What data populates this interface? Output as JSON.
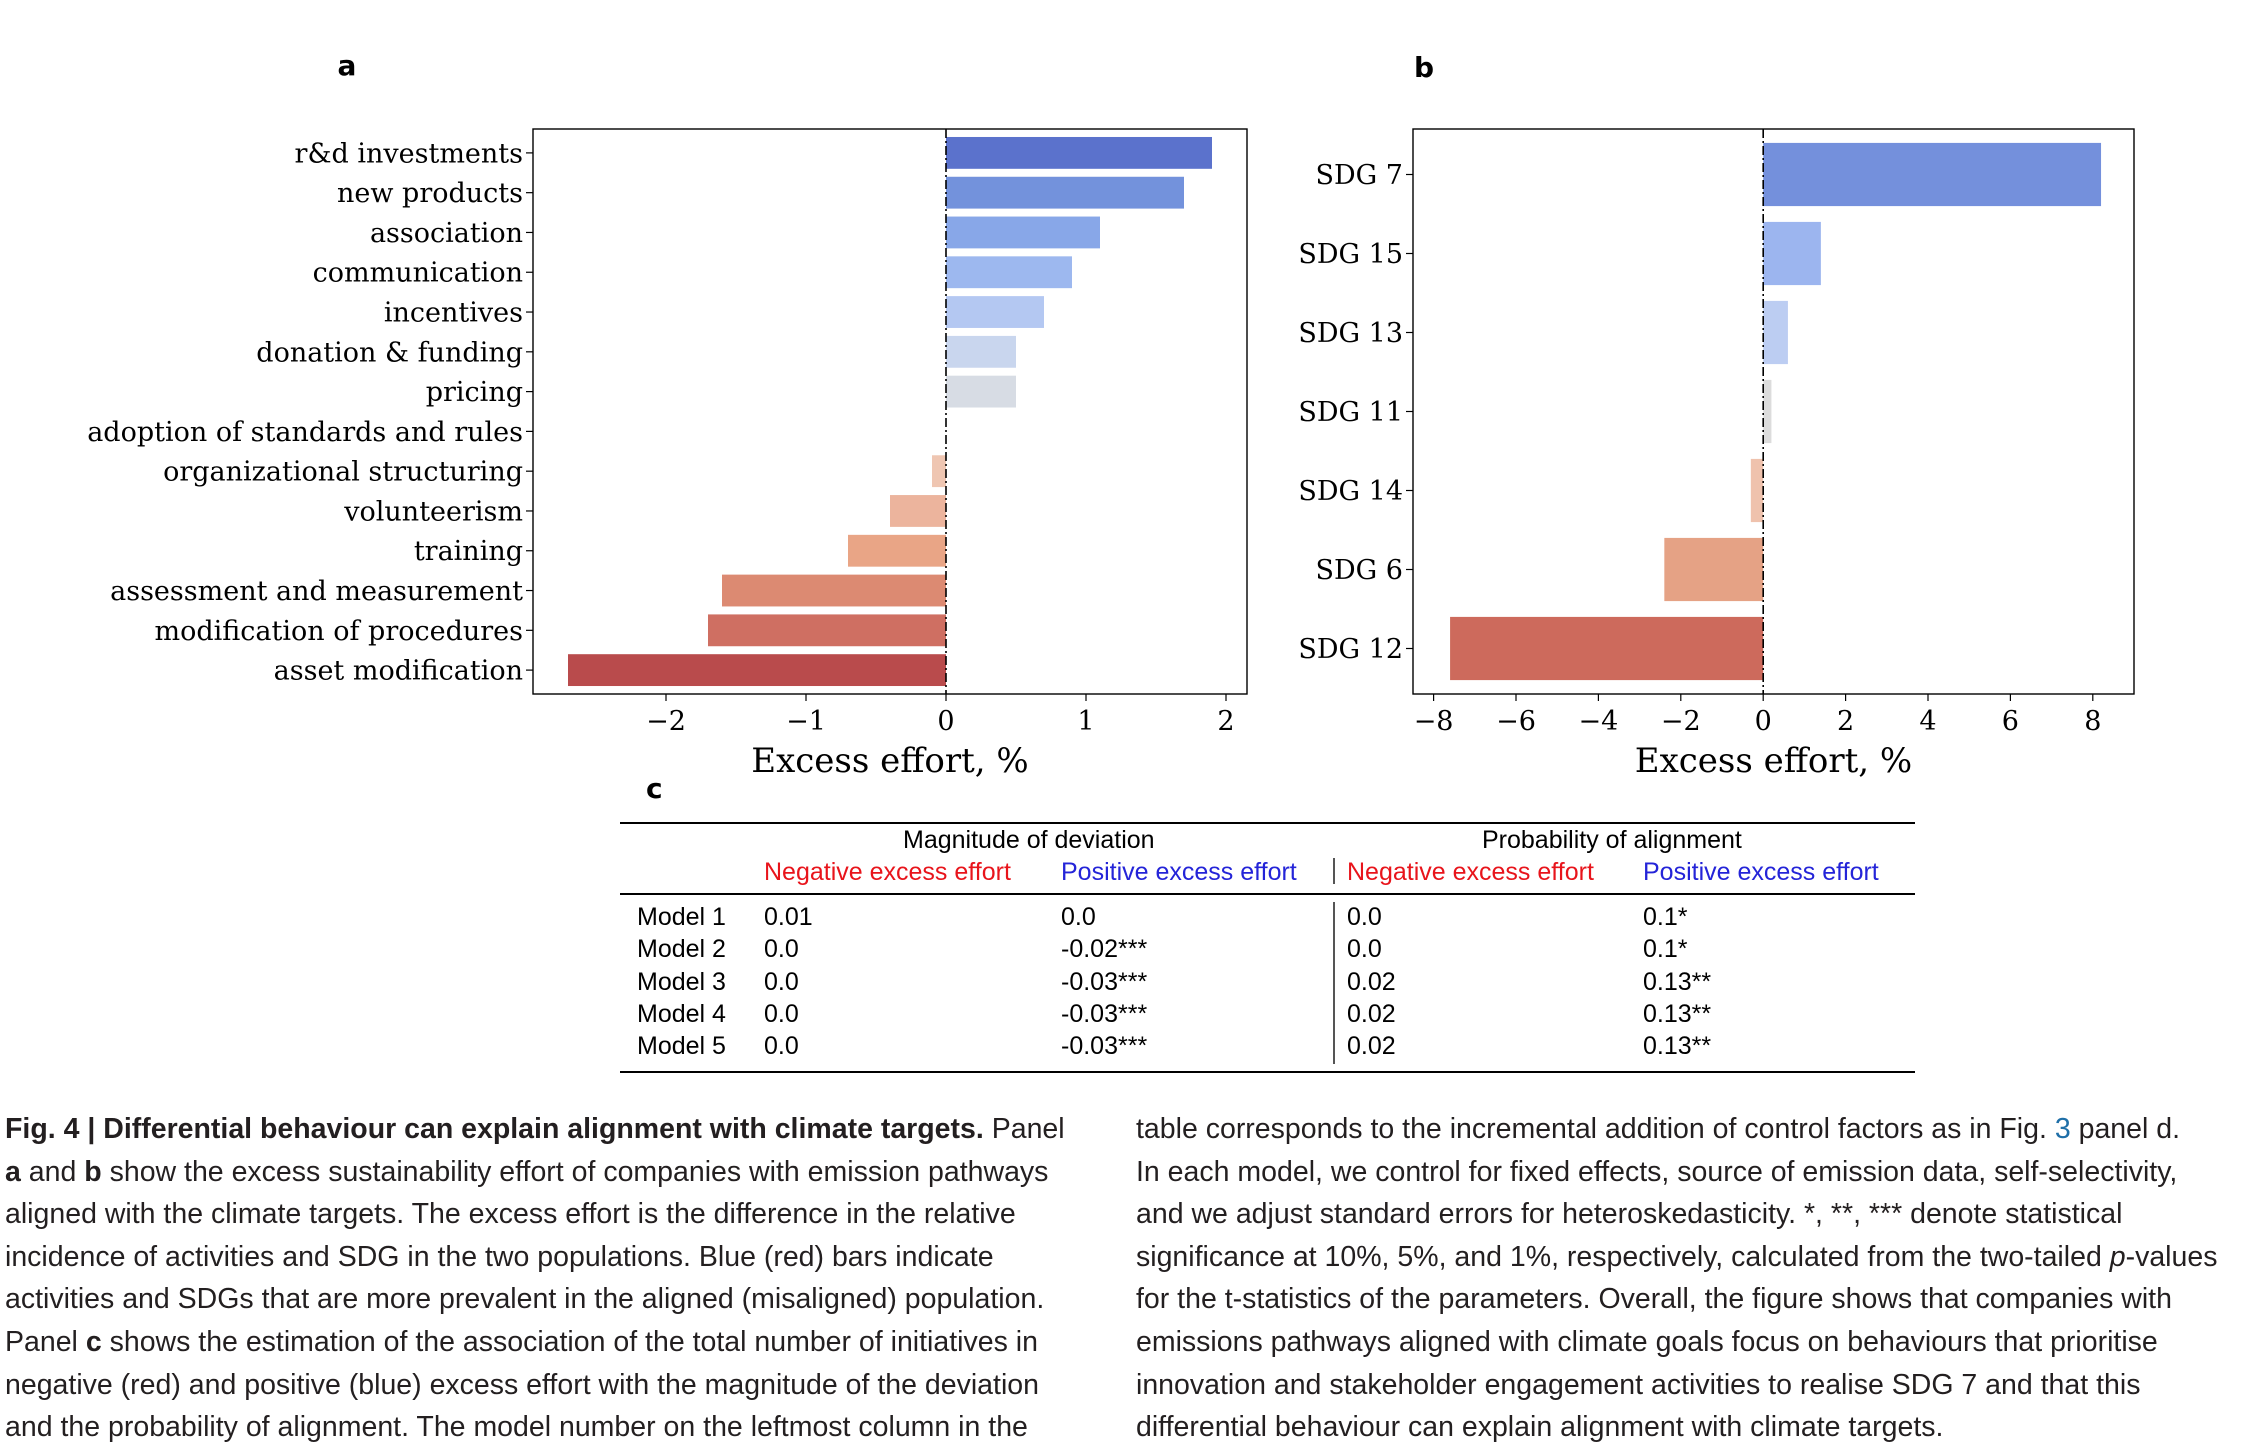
{
  "chart_data": [
    {
      "panel": "a",
      "type": "bar",
      "orientation": "horizontal",
      "categories": [
        "r&d investments",
        "new products",
        "association",
        "communication",
        "incentives",
        "donation & funding",
        "pricing",
        "adoption of standards and rules",
        "organizational structuring",
        "volunteerism",
        "training",
        "assessment and measurement",
        "modification of procedures",
        "asset modification"
      ],
      "values": [
        1.9,
        1.7,
        1.1,
        0.9,
        0.7,
        0.5,
        0.5,
        0.0,
        -0.1,
        -0.4,
        -0.7,
        -1.6,
        -1.7,
        -2.7
      ],
      "colors": [
        "#5b72cc",
        "#7392dc",
        "#88a7e8",
        "#9db8ef",
        "#b4c8f2",
        "#c9d6ee",
        "#d7dce4",
        "#e4d6cd",
        "#efc6b2",
        "#ecb49d",
        "#e9a586",
        "#dc8a72",
        "#cf6f62",
        "#b94b4c"
      ],
      "xlabel": "Excess effort, %",
      "xlim": [
        -2.95,
        2.15
      ],
      "xticks": [
        "−2",
        "−1",
        "0",
        "1",
        "2"
      ],
      "grid": false
    },
    {
      "panel": "b",
      "type": "bar",
      "orientation": "horizontal",
      "categories": [
        "SDG 7",
        "SDG 15",
        "SDG 13",
        "SDG 11",
        "SDG 14",
        "SDG 6",
        "SDG 12"
      ],
      "values": [
        8.2,
        1.4,
        0.6,
        0.2,
        -0.3,
        -2.4,
        -7.6
      ],
      "colors": [
        "#7490dc",
        "#9cb5ef",
        "#bccdf2",
        "#dcdcdc",
        "#efc2ad",
        "#e5a285",
        "#cd6a5c"
      ],
      "xlabel": "Excess effort, %",
      "xlim": [
        -8.5,
        9.0
      ],
      "xticks": [
        "−8",
        "−6",
        "−4",
        "−2",
        "0",
        "2",
        "4",
        "6",
        "8"
      ],
      "grid": false
    },
    {
      "panel": "c",
      "type": "table",
      "group_headers": [
        "Magnitude of deviation",
        "Probability of alignment"
      ],
      "column_headers": [
        "Negative excess effort",
        "Positive excess effort",
        "Negative excess effort",
        "Positive excess effort"
      ],
      "header_colors": [
        "#e8141b",
        "#2424d8",
        "#e8141b",
        "#2424d8"
      ],
      "rows": [
        [
          "Model 1",
          "0.01",
          "0.0",
          "0.0",
          "0.1*"
        ],
        [
          "Model 2",
          "0.0",
          "-0.02***",
          "0.0",
          "0.1*"
        ],
        [
          "Model 3",
          "0.0",
          "-0.03***",
          "0.02",
          "0.13**"
        ],
        [
          "Model 4",
          "0.0",
          "-0.03***",
          "0.02",
          "0.13**"
        ],
        [
          "Model 5",
          "0.0",
          "-0.03***",
          "0.02",
          "0.13**"
        ]
      ]
    }
  ],
  "panel_letters": {
    "a": "a",
    "b": "b",
    "c": "c"
  },
  "caption": {
    "label": "Fig. 4 | Differential behaviour can explain alignment with climate targets.",
    "left_lines": [
      [
        {
          "t": "Fig. 4 | Differential behaviour can explain alignment with climate targets.",
          "b": 1
        },
        {
          "t": " Panel"
        }
      ],
      [
        {
          "t": "a",
          "b": 1
        },
        {
          "t": " and "
        },
        {
          "t": "b",
          "b": 1
        },
        {
          "t": " show the excess sustainability effort of companies with emission pathways"
        }
      ],
      [
        {
          "t": "aligned with the climate targets. The excess effort is the difference in the relative"
        }
      ],
      [
        {
          "t": "incidence of activities and SDG in the two populations. Blue (red) bars indicate"
        }
      ],
      [
        {
          "t": "activities and SDGs that are more prevalent in the aligned (misaligned) population."
        }
      ],
      [
        {
          "t": "Panel "
        },
        {
          "t": "c",
          "b": 1
        },
        {
          "t": " shows the estimation of the association of the total number of initiatives in"
        }
      ],
      [
        {
          "t": "negative (red) and positive (blue) excess effort with the magnitude of the deviation"
        }
      ],
      [
        {
          "t": "and the probability of alignment. The model number on the leftmost column in the"
        }
      ]
    ],
    "right_lines": [
      [
        {
          "t": "table corresponds to the incremental addition of control factors as in Fig. "
        },
        {
          "t": "3",
          "r": 1
        },
        {
          "t": " panel d."
        }
      ],
      [
        {
          "t": "In each model, we control for fixed effects, source of emission data, self-selectivity,"
        }
      ],
      [
        {
          "t": "and we adjust standard errors for heteroskedasticity. *, **, *** denote statistical"
        }
      ],
      [
        {
          "t": "significance at 10%, 5%, and 1%, respectively, calculated from the two-tailed "
        },
        {
          "t": "p",
          "i": 1
        },
        {
          "t": "-values"
        }
      ],
      [
        {
          "t": "for the t-statistics of the parameters. Overall, the figure shows that companies with"
        }
      ],
      [
        {
          "t": "emissions pathways aligned with climate goals focus on behaviours that prioritise"
        }
      ],
      [
        {
          "t": "innovation and stakeholder engagement activities to realise SDG 7 and that this"
        }
      ],
      [
        {
          "t": "differential behaviour can explain alignment with climate targets."
        }
      ]
    ]
  }
}
